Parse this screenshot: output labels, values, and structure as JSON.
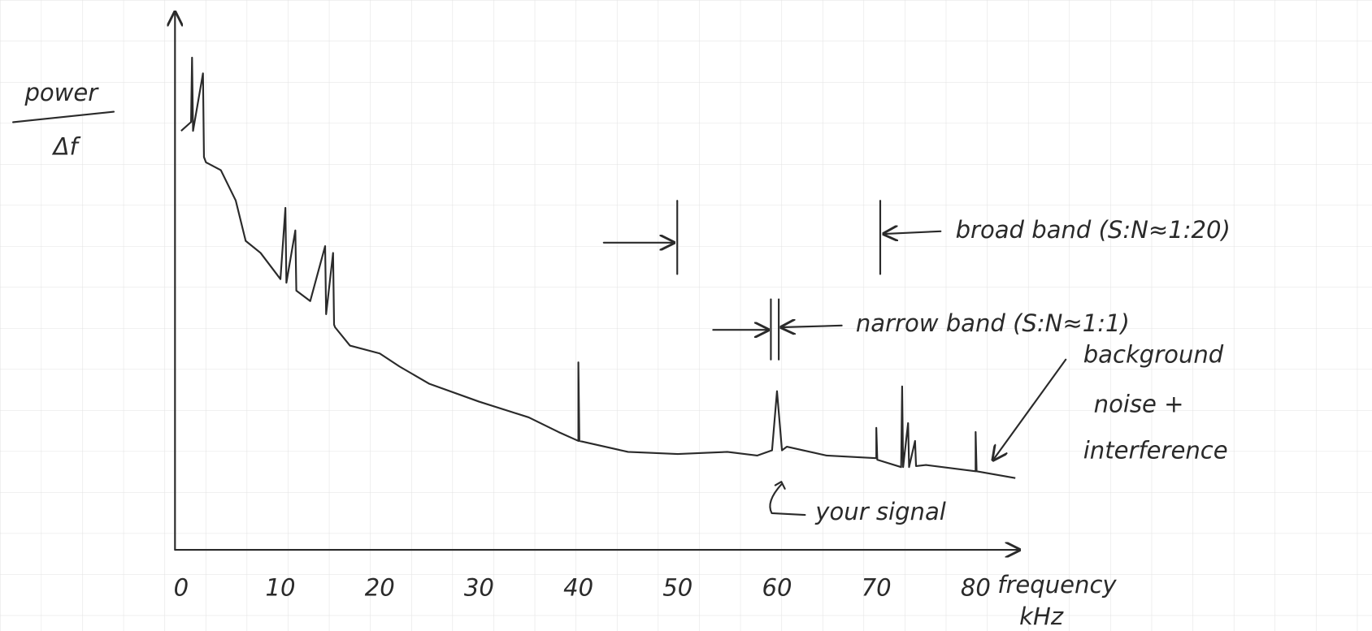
{
  "chart_data": {
    "type": "line",
    "ylabel": [
      "power",
      "Δf"
    ],
    "xlabel": [
      "frequency",
      "kHz"
    ],
    "annotations": [
      "broad band (S:N≈1:20)",
      "narrow band (S:N≈1:1)",
      "background",
      "noise +",
      "interference",
      "your signal"
    ],
    "x": [
      0,
      1,
      1.1,
      1.2,
      2.2,
      2.3,
      2.5,
      4,
      5.5,
      6.5,
      8,
      10,
      10.5,
      10.6,
      11.5,
      11.6,
      13,
      14.5,
      14.6,
      15.3,
      15.4,
      15.5,
      17,
      20,
      22,
      25,
      30,
      35,
      38,
      40,
      40,
      40.1,
      45,
      50,
      55,
      58,
      59.5,
      60,
      60.5,
      61,
      65,
      70,
      70,
      70.1,
      72.5,
      72.6,
      72.7,
      73.2,
      73.3,
      73.9,
      74,
      75,
      80,
      80,
      80.1,
      84
    ],
    "values": [
      80,
      81.7,
      94,
      80,
      91,
      75,
      74,
      72.5,
      66.7,
      59,
      56.7,
      51.7,
      65.3,
      51,
      61,
      49.5,
      47.5,
      58,
      45,
      56.7,
      43,
      42.5,
      39,
      37.5,
      35,
      31.7,
      28.3,
      25.3,
      22.5,
      20.8,
      35.8,
      20.8,
      18.7,
      18.3,
      18.7,
      18,
      19,
      30.3,
      19,
      19.7,
      18,
      17.5,
      23.3,
      17.2,
      15.8,
      31.2,
      15.8,
      24.2,
      15.8,
      20.8,
      16,
      16.2,
      15,
      22.5,
      15,
      13.7
    ],
    "color": "#2a2a2a",
    "xlim": [
      0,
      84
    ],
    "ylim": [
      0,
      100
    ],
    "xticks": [
      0,
      10,
      20,
      30,
      40,
      50,
      60,
      70,
      80
    ],
    "grid": true
  }
}
